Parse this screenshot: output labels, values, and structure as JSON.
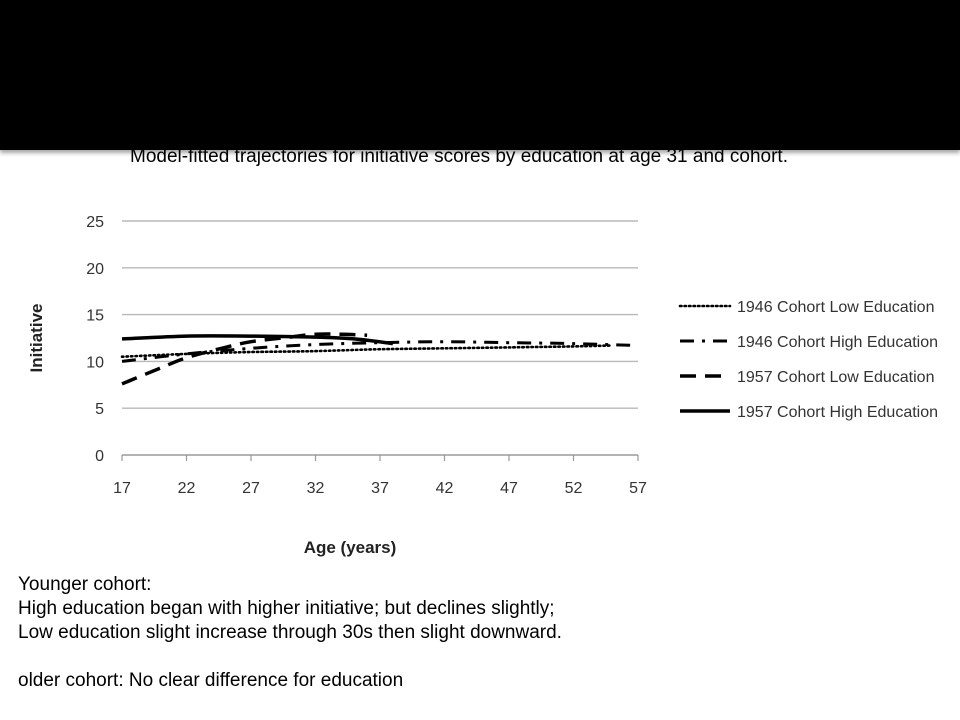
{
  "caption": "Model-fitted trajectories for initiative scores by education at age 31 and cohort.",
  "chart_data": {
    "type": "line",
    "title": "",
    "xlabel": "Age (years)",
    "ylabel": "Initiative",
    "xlim": [
      17,
      57
    ],
    "ylim": [
      0,
      25
    ],
    "x_ticks": [
      17,
      22,
      27,
      32,
      37,
      42,
      47,
      52,
      57
    ],
    "y_ticks": [
      0,
      5,
      10,
      15,
      20,
      25
    ],
    "grid": "horizontal",
    "legend_position": "right",
    "series": [
      {
        "name": "1946 Cohort Low Education",
        "style": "dotted",
        "color": "#000000",
        "points": [
          [
            17,
            10.5
          ],
          [
            22,
            10.8
          ],
          [
            27,
            11.0
          ],
          [
            32,
            11.1
          ],
          [
            37,
            11.3
          ],
          [
            42,
            11.4
          ],
          [
            47,
            11.5
          ],
          [
            52,
            11.6
          ],
          [
            55,
            11.7
          ]
        ]
      },
      {
        "name": "1946 Cohort High Education",
        "style": "dash-dot",
        "color": "#000000",
        "points": [
          [
            17,
            10.0
          ],
          [
            22,
            10.8
          ],
          [
            27,
            11.4
          ],
          [
            32,
            11.8
          ],
          [
            37,
            12.0
          ],
          [
            42,
            12.1
          ],
          [
            47,
            12.0
          ],
          [
            52,
            11.9
          ],
          [
            57,
            11.7
          ]
        ]
      },
      {
        "name": "1957 Cohort Low Education",
        "style": "dashed",
        "color": "#000000",
        "points": [
          [
            17,
            7.6
          ],
          [
            20,
            9.3
          ],
          [
            22,
            10.4
          ],
          [
            25,
            11.5
          ],
          [
            27,
            12.1
          ],
          [
            30,
            12.6
          ],
          [
            32,
            12.9
          ],
          [
            34,
            12.9
          ],
          [
            36,
            12.8
          ]
        ]
      },
      {
        "name": "1957 Cohort High Education",
        "style": "solid",
        "color": "#000000",
        "points": [
          [
            17,
            12.4
          ],
          [
            22,
            12.7
          ],
          [
            27,
            12.7
          ],
          [
            32,
            12.6
          ],
          [
            35,
            12.4
          ],
          [
            38,
            11.9
          ]
        ]
      }
    ]
  },
  "notes": [
    "Younger cohort:",
    "High education began with higher initiative; but declines slightly;",
    "Low education slight increase through 30s then slight downward.",
    "",
    "older cohort: No clear difference for education"
  ]
}
